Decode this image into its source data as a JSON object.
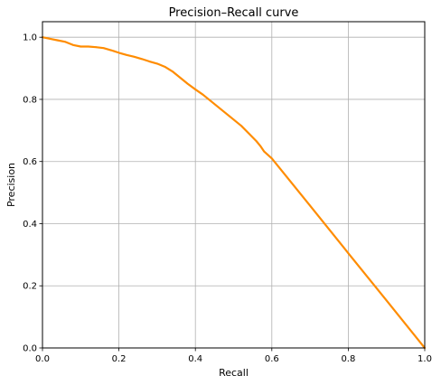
{
  "chart_data": {
    "type": "line",
    "title": "Precision–Recall curve",
    "xlabel": "Recall",
    "ylabel": "Precision",
    "xlim": [
      0,
      1
    ],
    "ylim": [
      0,
      1.05
    ],
    "grid": true,
    "xticks": [
      "0.0",
      "0.2",
      "0.4",
      "0.6",
      "0.8",
      "1.0"
    ],
    "yticks": [
      "0.0",
      "0.2",
      "0.4",
      "0.6",
      "0.8",
      "1.0"
    ],
    "series": [
      {
        "color": "#ff8c00",
        "x": [
          0.0,
          0.02,
          0.04,
          0.06,
          0.08,
          0.1,
          0.12,
          0.14,
          0.16,
          0.18,
          0.2,
          0.22,
          0.24,
          0.26,
          0.28,
          0.3,
          0.32,
          0.34,
          0.36,
          0.38,
          0.4,
          0.42,
          0.44,
          0.46,
          0.48,
          0.5,
          0.52,
          0.54,
          0.56,
          0.57,
          0.58,
          0.6,
          0.7,
          0.8,
          0.9,
          1.0
        ],
        "y": [
          1.0,
          0.995,
          0.99,
          0.985,
          0.975,
          0.97,
          0.97,
          0.968,
          0.965,
          0.958,
          0.95,
          0.943,
          0.937,
          0.93,
          0.922,
          0.915,
          0.905,
          0.89,
          0.87,
          0.85,
          0.832,
          0.815,
          0.795,
          0.775,
          0.755,
          0.735,
          0.715,
          0.69,
          0.665,
          0.65,
          0.632,
          0.61,
          0.458,
          0.305,
          0.153,
          0.0
        ]
      }
    ]
  }
}
